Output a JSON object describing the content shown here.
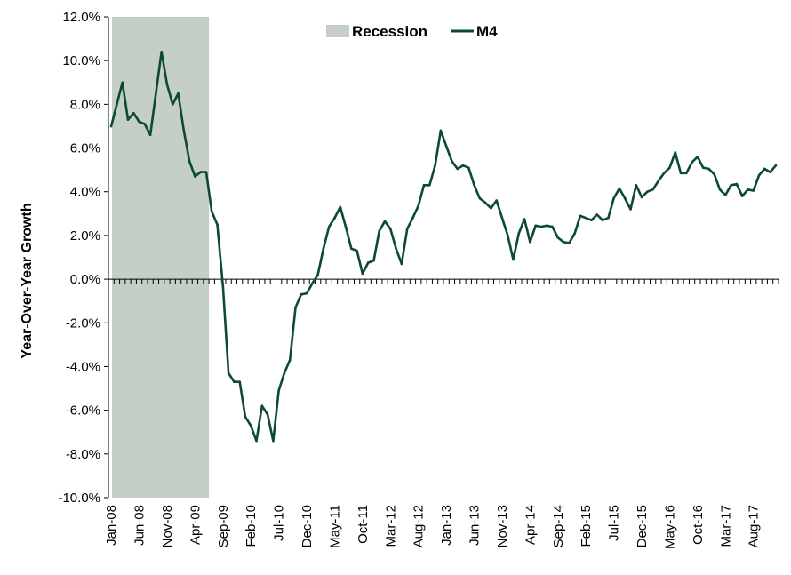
{
  "chart_data": {
    "type": "line",
    "ylabel": "Year-Over-Year Growth",
    "xlabel": "",
    "title": "",
    "ylim": [
      -10,
      12
    ],
    "y_ticks": [
      "-10.0%",
      "-8.0%",
      "-6.0%",
      "-4.0%",
      "-2.0%",
      "0.0%",
      "2.0%",
      "4.0%",
      "6.0%",
      "8.0%",
      "10.0%",
      "12.0%"
    ],
    "x_tick_labels": [
      "Jan-08",
      "Jun-08",
      "Nov-08",
      "Apr-09",
      "Sep-09",
      "Feb-10",
      "Jul-10",
      "Dec-10",
      "May-11",
      "Oct-11",
      "Mar-12",
      "Aug-12",
      "Jan-13",
      "Jun-13",
      "Nov-13",
      "Apr-14",
      "Sep-14",
      "Feb-15",
      "Jul-15",
      "Dec-15",
      "May-16",
      "Oct-16",
      "Mar-17",
      "Aug-17"
    ],
    "x_start": "Jan-08",
    "x_end": "Dec-17",
    "legend": {
      "position": "top-center",
      "items": [
        "Recession",
        "M4"
      ]
    },
    "recession": {
      "name": "Recession",
      "start": "Jan-08",
      "end": "Jun-09",
      "color": "#c5cfc8"
    },
    "series": [
      {
        "name": "M4",
        "color": "#0c4a36",
        "values": [
          7.0,
          8.0,
          9.0,
          7.3,
          7.6,
          7.2,
          7.1,
          6.6,
          8.5,
          10.4,
          8.9,
          8.0,
          8.5,
          6.8,
          5.4,
          4.7,
          4.9,
          4.9,
          3.1,
          2.5,
          -0.3,
          -4.3,
          -4.7,
          -4.7,
          -6.3,
          -6.7,
          -7.4,
          -5.8,
          -6.2,
          -7.4,
          -5.1,
          -4.3,
          -3.7,
          -1.3,
          -0.7,
          -0.65,
          -0.2,
          0.2,
          1.4,
          2.4,
          2.8,
          3.3,
          2.4,
          1.4,
          1.3,
          0.25,
          0.75,
          0.85,
          2.2,
          2.65,
          2.3,
          1.4,
          0.7,
          2.3,
          2.8,
          3.35,
          4.3,
          4.3,
          5.2,
          6.8,
          6.1,
          5.4,
          5.05,
          5.2,
          5.1,
          4.3,
          3.7,
          3.5,
          3.25,
          3.6,
          2.8,
          2.0,
          0.9,
          2.1,
          2.75,
          1.7,
          2.45,
          2.4,
          2.45,
          2.4,
          1.9,
          1.7,
          1.65,
          2.1,
          2.9,
          2.8,
          2.7,
          2.95,
          2.7,
          2.8,
          3.7,
          4.15,
          3.7,
          3.2,
          4.3,
          3.75,
          4.0,
          4.1,
          4.5,
          4.85,
          5.1,
          5.8,
          4.85,
          4.85,
          5.35,
          5.6,
          5.1,
          5.05,
          4.8,
          4.1,
          3.85,
          4.3,
          4.35,
          3.8,
          4.1,
          4.05,
          4.75,
          5.05,
          4.9,
          5.2
        ]
      }
    ]
  }
}
